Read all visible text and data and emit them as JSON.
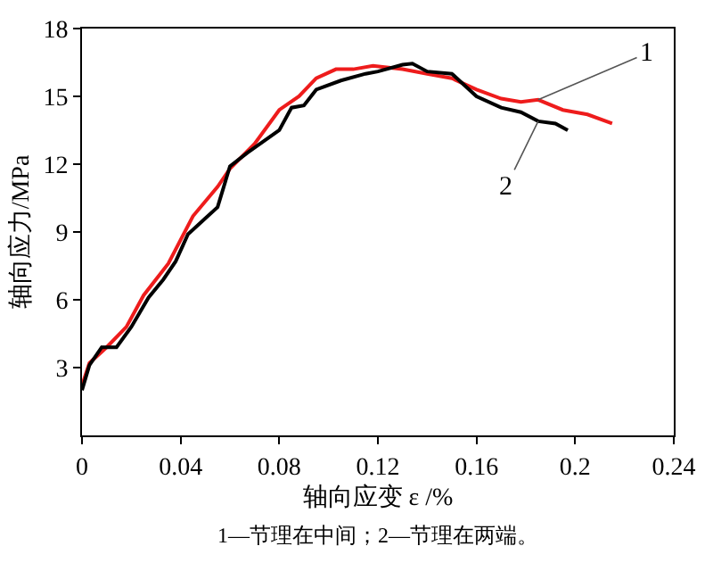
{
  "chart_data": {
    "type": "line",
    "xlabel": "轴向应变 ε /%",
    "ylabel": "轴向应力/MPa",
    "xlim": [
      0,
      0.24
    ],
    "xticks": [
      0,
      0.04,
      0.08,
      0.12,
      0.16,
      0.2,
      0.24
    ],
    "ylim": [
      0,
      18
    ],
    "yticks": [
      3,
      6,
      9,
      12,
      15,
      18
    ],
    "annotations": [
      "1—节理在中间；2—节理在两端。"
    ],
    "legend": false,
    "marker": "none",
    "line_style": "solid",
    "series": [
      {
        "name": "1",
        "color": "#ee1c1c",
        "x": [
          0,
          0.003,
          0.01,
          0.018,
          0.025,
          0.035,
          0.045,
          0.055,
          0.06,
          0.07,
          0.08,
          0.088,
          0.095,
          0.103,
          0.11,
          0.118,
          0.13,
          0.14,
          0.15,
          0.16,
          0.17,
          0.178,
          0.185,
          0.195,
          0.205,
          0.215
        ],
        "values": [
          2.2,
          3.2,
          3.9,
          4.8,
          6.2,
          7.6,
          9.7,
          11,
          11.8,
          12.9,
          14.4,
          15,
          15.8,
          16.2,
          16.2,
          16.35,
          16.2,
          16,
          15.8,
          15.3,
          14.9,
          14.75,
          14.85,
          14.4,
          14.2,
          13.8
        ]
      },
      {
        "name": "2",
        "color": "#000000",
        "x": [
          0,
          0.003,
          0.008,
          0.014,
          0.02,
          0.027,
          0.033,
          0.038,
          0.043,
          0.05,
          0.055,
          0.06,
          0.067,
          0.08,
          0.085,
          0.09,
          0.095,
          0.105,
          0.115,
          0.12,
          0.13,
          0.134,
          0.14,
          0.15,
          0.16,
          0.17,
          0.178,
          0.185,
          0.192,
          0.197
        ],
        "values": [
          2,
          3.1,
          3.9,
          3.9,
          4.8,
          6.1,
          6.9,
          7.7,
          8.9,
          9.6,
          10.1,
          11.9,
          12.5,
          13.5,
          14.5,
          14.6,
          15.3,
          15.7,
          16,
          16.1,
          16.4,
          16.45,
          16.1,
          16,
          15,
          14.5,
          14.3,
          13.9,
          13.8,
          13.5
        ]
      }
    ]
  }
}
